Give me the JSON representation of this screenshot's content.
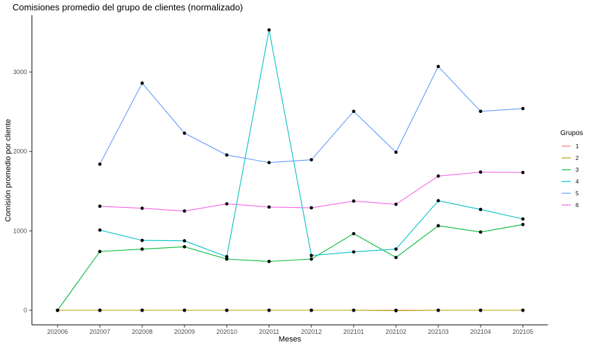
{
  "chart_data": {
    "type": "line",
    "title": "Comisiones promedio del grupo de clientes (normalizado)",
    "xlabel": "Meses",
    "ylabel": "Comisión promedio por cliente",
    "categories": [
      "202006",
      "202007",
      "202008",
      "202009",
      "202010",
      "202011",
      "202012",
      "202101",
      "202102",
      "202103",
      "202104",
      "202105"
    ],
    "ylim": [
      -130,
      3650
    ],
    "yticks": [
      0,
      1000,
      2000,
      3000
    ],
    "grid": false,
    "legend": {
      "title": "Grupos",
      "position": "right"
    },
    "series": [
      {
        "name": "1",
        "color": "#F8766D",
        "values": [
          0,
          0,
          0,
          0,
          0,
          0,
          0,
          0,
          0,
          0,
          0,
          0
        ]
      },
      {
        "name": "2",
        "color": "#B79F00",
        "values": [
          0,
          0,
          0,
          0,
          0,
          0,
          0,
          0,
          -5,
          0,
          0,
          0
        ]
      },
      {
        "name": "3",
        "color": "#00BA38",
        "values": [
          0,
          740,
          770,
          800,
          645,
          615,
          645,
          965,
          665,
          1065,
          985,
          1080
        ]
      },
      {
        "name": "4",
        "color": "#00BFC4",
        "values": [
          null,
          1010,
          880,
          875,
          675,
          3530,
          690,
          735,
          770,
          1380,
          1270,
          1150
        ]
      },
      {
        "name": "5",
        "color": "#619CFF",
        "values": [
          null,
          1840,
          2860,
          2230,
          1955,
          1860,
          1895,
          2505,
          1990,
          3070,
          2505,
          2540
        ]
      },
      {
        "name": "6",
        "color": "#F564E3",
        "values": [
          null,
          1310,
          1285,
          1250,
          1340,
          1300,
          1290,
          1375,
          1335,
          1690,
          1740,
          1735
        ]
      }
    ]
  }
}
